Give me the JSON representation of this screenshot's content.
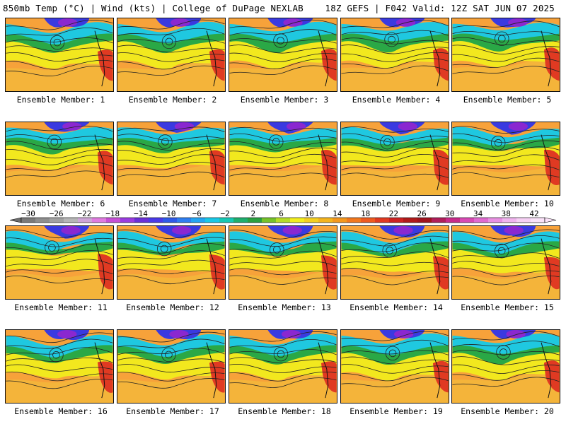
{
  "header": {
    "left": "850mb Temp (°C) | Wind (kts) | College of DuPage NEXLAB",
    "right": "18Z GEFS | F042 Valid: 12Z SAT JUN 07 2025"
  },
  "panels": [
    {
      "label": "Ensemble Member: 1"
    },
    {
      "label": "Ensemble Member: 2"
    },
    {
      "label": "Ensemble Member: 3"
    },
    {
      "label": "Ensemble Member: 4"
    },
    {
      "label": "Ensemble Member: 5"
    },
    {
      "label": "Ensemble Member: 6"
    },
    {
      "label": "Ensemble Member: 7"
    },
    {
      "label": "Ensemble Member: 8"
    },
    {
      "label": "Ensemble Member: 9"
    },
    {
      "label": "Ensemble Member: 10"
    },
    {
      "label": "Ensemble Member: 11"
    },
    {
      "label": "Ensemble Member: 12"
    },
    {
      "label": "Ensemble Member: 13"
    },
    {
      "label": "Ensemble Member: 14"
    },
    {
      "label": "Ensemble Member: 15"
    },
    {
      "label": "Ensemble Member: 16"
    },
    {
      "label": "Ensemble Member: 17"
    },
    {
      "label": "Ensemble Member: 18"
    },
    {
      "label": "Ensemble Member: 19"
    },
    {
      "label": "Ensemble Member: 20"
    }
  ],
  "colorbar": {
    "labels": [
      "-30",
      "-26",
      "-22",
      "-18",
      "-14",
      "-10",
      "-6",
      "-2",
      "2",
      "6",
      "10",
      "14",
      "18",
      "22",
      "26",
      "30",
      "34",
      "38",
      "42"
    ],
    "colors": [
      "#7a7a7a",
      "#8e8e8e",
      "#a2a2a2",
      "#b6b6b6",
      "#cfa5d8",
      "#e07be0",
      "#c64fd6",
      "#9a3ce0",
      "#6a30d6",
      "#4a3ae8",
      "#2f5ae8",
      "#2f7ef0",
      "#23a6f2",
      "#19c8e6",
      "#16c8b4",
      "#1fae6e",
      "#2aa040",
      "#76c22a",
      "#b6dc28",
      "#f2ee1e",
      "#f4d020",
      "#f4b41e",
      "#f4981e",
      "#f2781e",
      "#ee5a20",
      "#e03a22",
      "#cc2222",
      "#b01a1a",
      "#a0141e",
      "#b01e5a",
      "#c82a8a",
      "#d84ab4",
      "#e06ad0",
      "#e890e2",
      "#f0b4ee",
      "#f6d0f4",
      "#fae2f8"
    ]
  }
}
